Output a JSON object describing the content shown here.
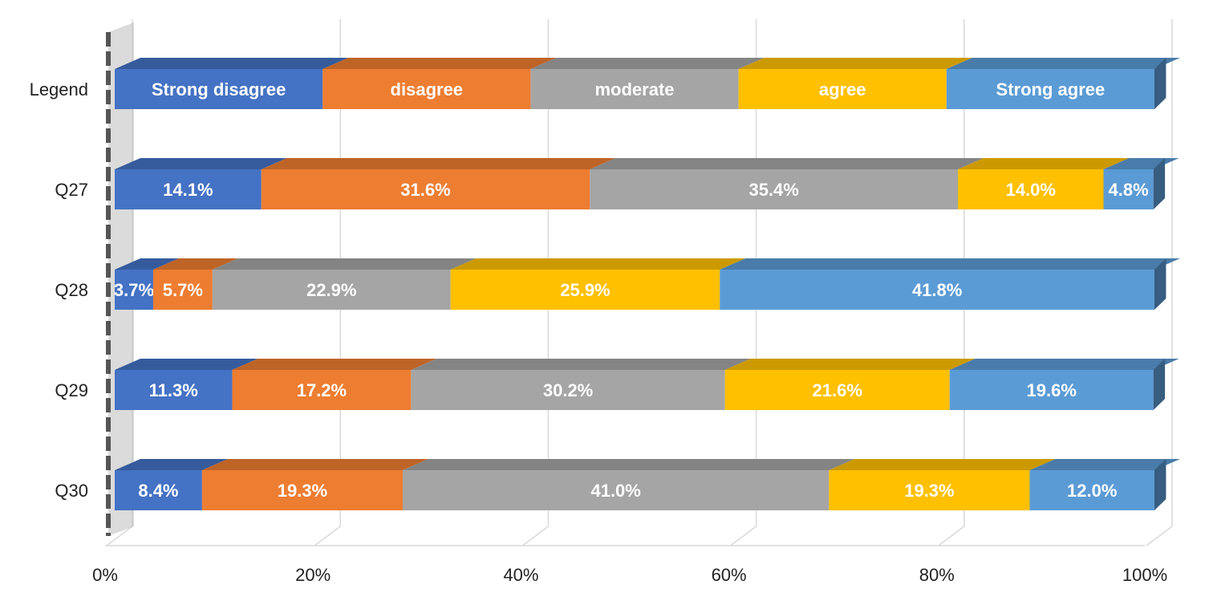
{
  "chart_data": {
    "type": "bar",
    "orientation": "horizontal",
    "stacked": "percent",
    "style": "3d",
    "categories": [
      "Legend",
      "Q27",
      "Q28",
      "Q29",
      "Q30"
    ],
    "series": [
      {
        "name": "Strong disagree",
        "color": "#4472C4",
        "values": [
          20,
          14.1,
          3.7,
          11.3,
          8.4
        ],
        "labels": [
          "Strong disagree",
          "14.1%",
          "3.7%",
          "11.3%",
          "8.4%"
        ]
      },
      {
        "name": "disagree",
        "color": "#ED7D31",
        "values": [
          20,
          31.6,
          5.7,
          17.2,
          19.3
        ],
        "labels": [
          "disagree",
          "31.6%",
          "5.7%",
          "17.2%",
          "19.3%"
        ]
      },
      {
        "name": "moderate",
        "color": "#A5A5A5",
        "values": [
          20,
          35.4,
          22.9,
          30.2,
          41.0
        ],
        "labels": [
          "moderate",
          "35.4%",
          "22.9%",
          "30.2%",
          "41.0%"
        ]
      },
      {
        "name": "agree",
        "color": "#FFC000",
        "values": [
          20,
          14.0,
          25.9,
          21.6,
          19.3
        ],
        "labels": [
          "agree",
          "14.0%",
          "25.9%",
          "21.6%",
          "19.3%"
        ]
      },
      {
        "name": "Strong agree",
        "color": "#5B9BD5",
        "values": [
          20,
          4.8,
          41.8,
          19.6,
          12.0
        ],
        "labels": [
          "Strong agree",
          "4.8%",
          "41.8%",
          "19.6%",
          "12.0%"
        ]
      }
    ],
    "x_ticks": [
      "0%",
      "20%",
      "40%",
      "60%",
      "80%",
      "100%"
    ],
    "xlim": [
      0,
      100
    ],
    "grid": true,
    "legend_position": "inline-top-row",
    "title": "",
    "xlabel": "",
    "ylabel": ""
  }
}
